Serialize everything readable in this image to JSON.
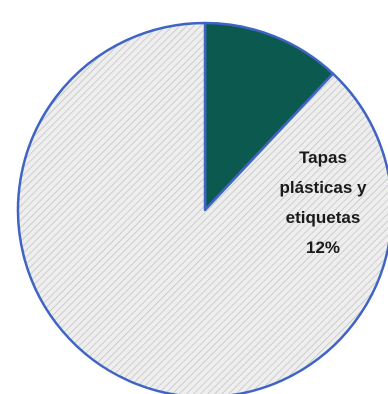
{
  "chart_data": {
    "type": "pie",
    "slices": [
      {
        "label_lines": [
          "Tapas",
          "plásticas y",
          "etiquetas",
          "12%"
        ],
        "label": "Tapas plásticas y etiquetas",
        "value": 12,
        "value_label": "12%",
        "color": "#0c5950"
      },
      {
        "label": "",
        "value": 88,
        "color": "#eeeeee",
        "pattern": "diagonal-hatch"
      }
    ],
    "outline_color": "#3f64c4",
    "hatch_color": "#bdbdbd",
    "start": "12 o'clock",
    "direction": "clockwise"
  }
}
